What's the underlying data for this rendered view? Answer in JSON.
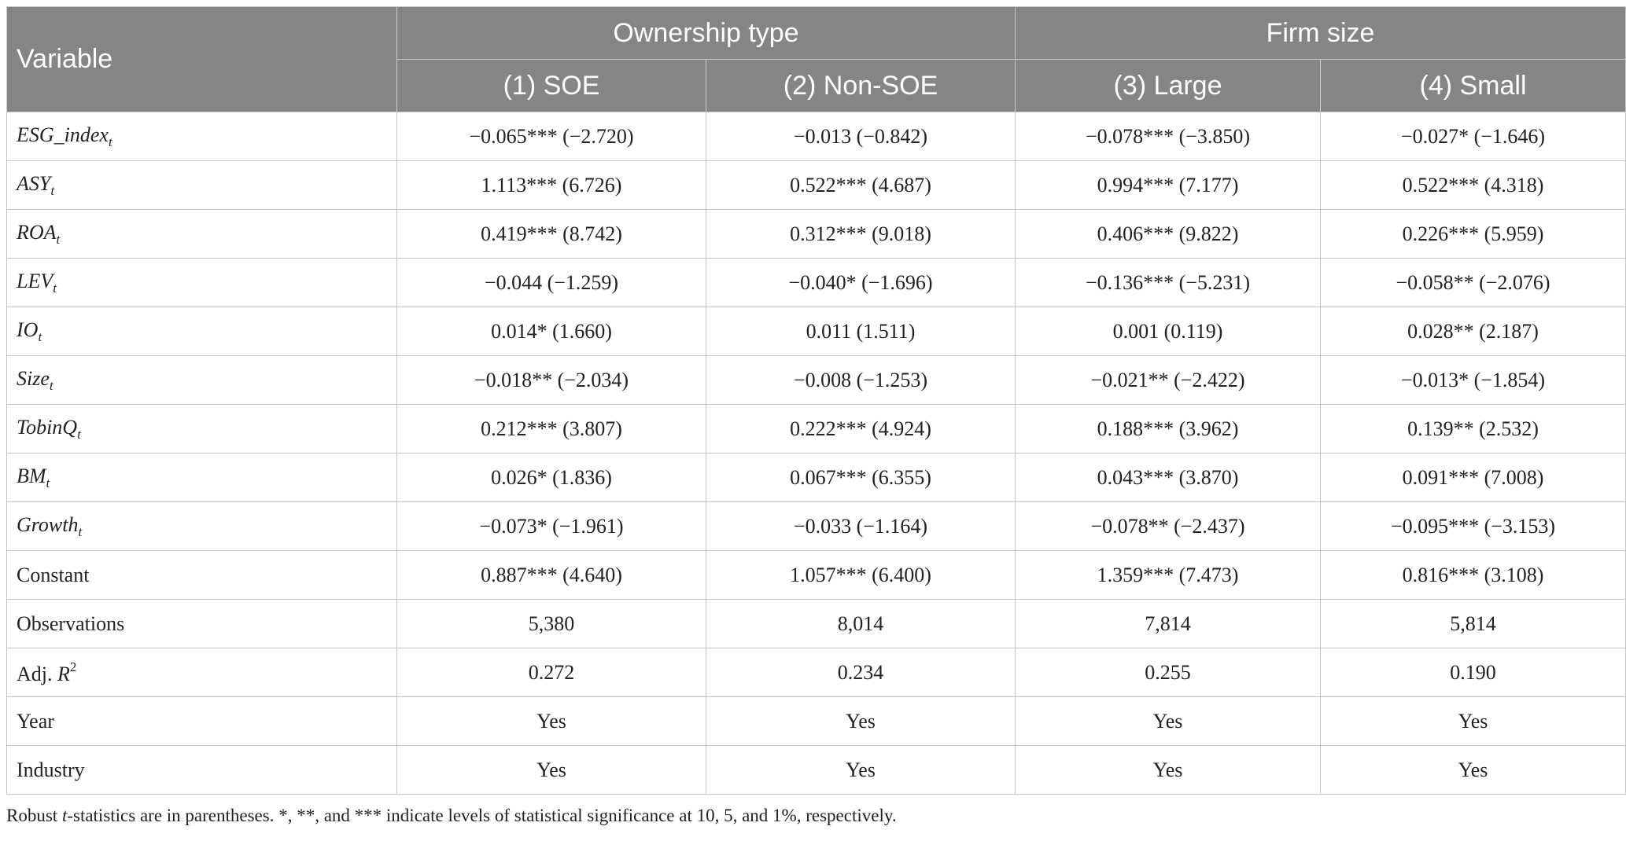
{
  "table": {
    "header": {
      "variable": "Variable",
      "groups": [
        "Ownership type",
        "Firm size"
      ],
      "columns": [
        "(1) SOE",
        "(2) Non-SOE",
        "(3) Large",
        "(4) Small"
      ]
    },
    "rows": [
      {
        "name": "ESG_index",
        "sub": "t",
        "values": [
          "−0.065*** (−2.720)",
          "−0.013 (−0.842)",
          "−0.078*** (−3.850)",
          "−0.027* (−1.646)"
        ]
      },
      {
        "name": "ASY",
        "sub": "t",
        "values": [
          "1.113*** (6.726)",
          "0.522*** (4.687)",
          "0.994*** (7.177)",
          "0.522*** (4.318)"
        ]
      },
      {
        "name": "ROA",
        "sub": "t",
        "values": [
          "0.419*** (8.742)",
          "0.312*** (9.018)",
          "0.406*** (9.822)",
          "0.226*** (5.959)"
        ]
      },
      {
        "name": "LEV",
        "sub": "t",
        "values": [
          "−0.044 (−1.259)",
          "−0.040* (−1.696)",
          "−0.136*** (−5.231)",
          "−0.058** (−2.076)"
        ]
      },
      {
        "name": "IO",
        "sub": "t",
        "values": [
          "0.014* (1.660)",
          "0.011 (1.511)",
          "0.001 (0.119)",
          "0.028** (2.187)"
        ]
      },
      {
        "name": "Size",
        "sub": "t",
        "values": [
          "−0.018** (−2.034)",
          "−0.008 (−1.253)",
          "−0.021** (−2.422)",
          "−0.013* (−1.854)"
        ]
      },
      {
        "name": "TobinQ",
        "sub": "t",
        "values": [
          "0.212*** (3.807)",
          "0.222*** (4.924)",
          "0.188*** (3.962)",
          "0.139** (2.532)"
        ]
      },
      {
        "name": "BM",
        "sub": "t",
        "values": [
          "0.026* (1.836)",
          "0.067*** (6.355)",
          "0.043*** (3.870)",
          "0.091*** (7.008)"
        ]
      },
      {
        "name": "Growth",
        "sub": "t",
        "values": [
          "−0.073* (−1.961)",
          "−0.033 (−1.164)",
          "−0.078** (−2.437)",
          "−0.095*** (−3.153)"
        ]
      },
      {
        "name": "Constant",
        "values": [
          "0.887*** (4.640)",
          "1.057*** (6.400)",
          "1.359*** (7.473)",
          "0.816*** (3.108)"
        ]
      },
      {
        "name": "Observations",
        "values": [
          "5,380",
          "8,014",
          "7,814",
          "5,814"
        ]
      },
      {
        "name": "Adj. ",
        "italic_part": "R",
        "sup": "2",
        "values": [
          "0.272",
          "0.234",
          "0.255",
          "0.190"
        ]
      },
      {
        "name": "Year",
        "values": [
          "Yes",
          "Yes",
          "Yes",
          "Yes"
        ]
      },
      {
        "name": "Industry",
        "values": [
          "Yes",
          "Yes",
          "Yes",
          "Yes"
        ]
      }
    ]
  },
  "note": {
    "part1": "Robust ",
    "italic": "t",
    "part2": "-statistics are in parentheses. *, **, and *** indicate levels of statistical significance at 10, 5, and 1%, respectively."
  }
}
